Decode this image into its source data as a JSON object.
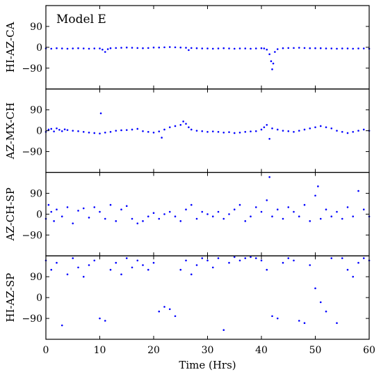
{
  "chart_data": {
    "type": "scatter",
    "title": "Model E",
    "xlabel": "Time (Hrs)",
    "xlim": [
      0,
      60
    ],
    "xticks": [
      0,
      10,
      20,
      30,
      40,
      50,
      60
    ],
    "yticks": [
      -90,
      0,
      90
    ],
    "ylim": [
      -180,
      180
    ],
    "marker_color": "#0000ff",
    "grid": false,
    "legend": "none",
    "panels": [
      {
        "ylabel": "HI-AZ-CA",
        "description": "near-constant ~0 with small dips",
        "points": [
          [
            0,
            -5
          ],
          [
            1,
            -6
          ],
          [
            2,
            -4
          ],
          [
            3,
            -5
          ],
          [
            4,
            -6
          ],
          [
            5,
            -5
          ],
          [
            6,
            -4
          ],
          [
            7,
            -5
          ],
          [
            8,
            -6
          ],
          [
            9,
            -5
          ],
          [
            10,
            -5
          ],
          [
            10.5,
            -10
          ],
          [
            11,
            -20
          ],
          [
            11.5,
            -8
          ],
          [
            12,
            -4
          ],
          [
            13,
            -3
          ],
          [
            14,
            -2
          ],
          [
            15,
            -1
          ],
          [
            16,
            -2
          ],
          [
            17,
            -3
          ],
          [
            18,
            -4
          ],
          [
            19,
            -3
          ],
          [
            20,
            -1
          ],
          [
            21,
            -1
          ],
          [
            22,
            0
          ],
          [
            23,
            1
          ],
          [
            24,
            0
          ],
          [
            25,
            -1
          ],
          [
            26,
            -2
          ],
          [
            26.5,
            -12
          ],
          [
            27,
            -3
          ],
          [
            28,
            -4
          ],
          [
            29,
            -5
          ],
          [
            30,
            -5
          ],
          [
            31,
            -6
          ],
          [
            32,
            -5
          ],
          [
            33,
            -4
          ],
          [
            34,
            -5
          ],
          [
            35,
            -6
          ],
          [
            36,
            -5
          ],
          [
            37,
            -5
          ],
          [
            38,
            -6
          ],
          [
            39,
            -5
          ],
          [
            40,
            -4
          ],
          [
            40.5,
            -5
          ],
          [
            41,
            -10
          ],
          [
            41.5,
            -30
          ],
          [
            41.8,
            -60
          ],
          [
            42,
            -95
          ],
          [
            42.2,
            -70
          ],
          [
            42.5,
            -20
          ],
          [
            43,
            -8
          ],
          [
            44,
            -4
          ],
          [
            45,
            -3
          ],
          [
            46,
            -3
          ],
          [
            47,
            -2
          ],
          [
            48,
            -3
          ],
          [
            49,
            -4
          ],
          [
            50,
            -4
          ],
          [
            51,
            -4
          ],
          [
            52,
            -5
          ],
          [
            53,
            -5
          ],
          [
            54,
            -6
          ],
          [
            55,
            -5
          ],
          [
            56,
            -5
          ],
          [
            57,
            -6
          ],
          [
            58,
            -5
          ],
          [
            59,
            -5
          ],
          [
            60,
            -6
          ]
        ]
      },
      {
        "ylabel": "AZ-MX-CH",
        "description": "noisy around 0",
        "points": [
          [
            0,
            -5
          ],
          [
            0.5,
            5
          ],
          [
            1,
            8
          ],
          [
            1.5,
            -3
          ],
          [
            2,
            10
          ],
          [
            2.5,
            4
          ],
          [
            3,
            -2
          ],
          [
            3.5,
            6
          ],
          [
            4,
            3
          ],
          [
            5,
            0
          ],
          [
            6,
            -2
          ],
          [
            7,
            -5
          ],
          [
            8,
            -8
          ],
          [
            9,
            -10
          ],
          [
            10,
            -12
          ],
          [
            10.2,
            75
          ],
          [
            11,
            -8
          ],
          [
            12,
            -5
          ],
          [
            13,
            0
          ],
          [
            14,
            2
          ],
          [
            15,
            3
          ],
          [
            16,
            5
          ],
          [
            17,
            8
          ],
          [
            18,
            -2
          ],
          [
            19,
            -5
          ],
          [
            20,
            -8
          ],
          [
            21,
            -3
          ],
          [
            21.5,
            -30
          ],
          [
            22,
            5
          ],
          [
            23,
            15
          ],
          [
            24,
            20
          ],
          [
            25,
            25
          ],
          [
            25.5,
            40
          ],
          [
            26,
            30
          ],
          [
            26.5,
            15
          ],
          [
            27,
            5
          ],
          [
            28,
            0
          ],
          [
            29,
            -2
          ],
          [
            30,
            -5
          ],
          [
            31,
            -3
          ],
          [
            32,
            -5
          ],
          [
            33,
            -8
          ],
          [
            34,
            -6
          ],
          [
            35,
            -10
          ],
          [
            36,
            -8
          ],
          [
            37,
            -5
          ],
          [
            38,
            -3
          ],
          [
            39,
            -2
          ],
          [
            40,
            5
          ],
          [
            40.5,
            15
          ],
          [
            41,
            25
          ],
          [
            41.5,
            -35
          ],
          [
            42,
            10
          ],
          [
            43,
            5
          ],
          [
            44,
            0
          ],
          [
            45,
            -2
          ],
          [
            46,
            -5
          ],
          [
            47,
            0
          ],
          [
            48,
            5
          ],
          [
            49,
            10
          ],
          [
            50,
            15
          ],
          [
            51,
            20
          ],
          [
            52,
            15
          ],
          [
            53,
            10
          ],
          [
            54,
            0
          ],
          [
            55,
            -5
          ],
          [
            56,
            -10
          ],
          [
            57,
            -5
          ],
          [
            58,
            0
          ],
          [
            59,
            5
          ],
          [
            60,
            0
          ]
        ]
      },
      {
        "ylabel": "AZ-CH-SP",
        "description": "noisy, spread ~±60",
        "points": [
          [
            0,
            -20
          ],
          [
            0.5,
            40
          ],
          [
            1,
            10
          ],
          [
            1.5,
            -30
          ],
          [
            2,
            20
          ],
          [
            3,
            -10
          ],
          [
            4,
            30
          ],
          [
            5,
            -40
          ],
          [
            6,
            15
          ],
          [
            7,
            25
          ],
          [
            8,
            -15
          ],
          [
            9,
            30
          ],
          [
            10,
            10
          ],
          [
            11,
            -20
          ],
          [
            12,
            40
          ],
          [
            13,
            -30
          ],
          [
            14,
            20
          ],
          [
            15,
            35
          ],
          [
            16,
            -20
          ],
          [
            17,
            -40
          ],
          [
            18,
            -30
          ],
          [
            19,
            -10
          ],
          [
            20,
            5
          ],
          [
            21,
            -20
          ],
          [
            22,
            0
          ],
          [
            23,
            10
          ],
          [
            24,
            -10
          ],
          [
            25,
            -30
          ],
          [
            26,
            20
          ],
          [
            27,
            40
          ],
          [
            28,
            -20
          ],
          [
            29,
            10
          ],
          [
            30,
            0
          ],
          [
            31,
            -10
          ],
          [
            32,
            10
          ],
          [
            33,
            -20
          ],
          [
            34,
            0
          ],
          [
            35,
            20
          ],
          [
            36,
            40
          ],
          [
            37,
            -30
          ],
          [
            38,
            -10
          ],
          [
            39,
            30
          ],
          [
            40,
            10
          ],
          [
            41,
            60
          ],
          [
            41.5,
            160
          ],
          [
            42,
            -10
          ],
          [
            43,
            20
          ],
          [
            44,
            -20
          ],
          [
            45,
            30
          ],
          [
            46,
            10
          ],
          [
            47,
            -10
          ],
          [
            48,
            40
          ],
          [
            49,
            -30
          ],
          [
            50,
            80
          ],
          [
            50.5,
            120
          ],
          [
            51,
            -20
          ],
          [
            52,
            20
          ],
          [
            53,
            -10
          ],
          [
            54,
            10
          ],
          [
            55,
            -20
          ],
          [
            56,
            30
          ],
          [
            57,
            -10
          ],
          [
            58,
            100
          ],
          [
            59,
            20
          ],
          [
            60,
            -10
          ]
        ]
      },
      {
        "ylabel": "HI-AZ-SP",
        "description": "clusters near +180 and scattered",
        "points": [
          [
            0,
            160
          ],
          [
            1,
            120
          ],
          [
            2,
            150
          ],
          [
            3,
            -120
          ],
          [
            4,
            100
          ],
          [
            5,
            170
          ],
          [
            6,
            130
          ],
          [
            7,
            90
          ],
          [
            8,
            140
          ],
          [
            9,
            160
          ],
          [
            10,
            -90
          ],
          [
            11,
            -100
          ],
          [
            12,
            120
          ],
          [
            13,
            150
          ],
          [
            14,
            100
          ],
          [
            15,
            170
          ],
          [
            16,
            130
          ],
          [
            17,
            160
          ],
          [
            18,
            140
          ],
          [
            19,
            120
          ],
          [
            20,
            150
          ],
          [
            21,
            -60
          ],
          [
            22,
            -40
          ],
          [
            23,
            -50
          ],
          [
            24,
            -80
          ],
          [
            25,
            120
          ],
          [
            26,
            160
          ],
          [
            27,
            100
          ],
          [
            28,
            140
          ],
          [
            29,
            170
          ],
          [
            30,
            160
          ],
          [
            31,
            130
          ],
          [
            32,
            170
          ],
          [
            33,
            -140
          ],
          [
            34,
            150
          ],
          [
            35,
            175
          ],
          [
            36,
            160
          ],
          [
            37,
            170
          ],
          [
            38,
            175
          ],
          [
            39,
            170
          ],
          [
            40,
            160
          ],
          [
            41,
            120
          ],
          [
            42,
            -80
          ],
          [
            43,
            -90
          ],
          [
            44,
            150
          ],
          [
            45,
            170
          ],
          [
            46,
            160
          ],
          [
            47,
            -100
          ],
          [
            48,
            -110
          ],
          [
            49,
            140
          ],
          [
            50,
            40
          ],
          [
            51,
            -20
          ],
          [
            52,
            -60
          ],
          [
            53,
            170
          ],
          [
            54,
            -110
          ],
          [
            55,
            170
          ],
          [
            56,
            120
          ],
          [
            57,
            90
          ],
          [
            58,
            150
          ],
          [
            59,
            170
          ],
          [
            60,
            160
          ]
        ]
      }
    ]
  }
}
